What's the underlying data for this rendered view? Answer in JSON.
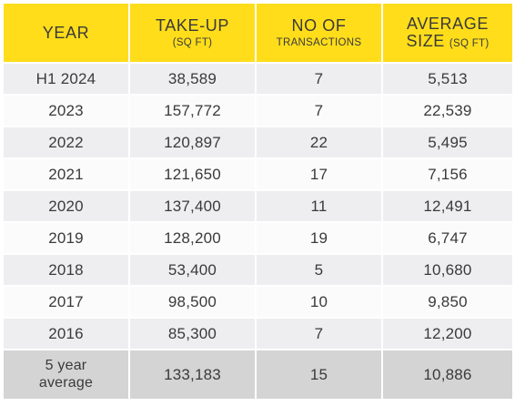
{
  "header": {
    "year": "YEAR",
    "takeup": "TAKE-UP",
    "takeup_unit": "(SQ FT)",
    "transactions_top": "NO OF",
    "transactions_bottom": "TRANSACTIONS",
    "avg_top": "AVERAGE",
    "avg_size": "SIZE",
    "avg_unit": "(SQ FT)"
  },
  "rows": [
    {
      "year": "H1 2024",
      "takeup": "38,589",
      "transactions": "7",
      "avg_size": "5,513"
    },
    {
      "year": "2023",
      "takeup": "157,772",
      "transactions": "7",
      "avg_size": "22,539"
    },
    {
      "year": "2022",
      "takeup": "120,897",
      "transactions": "22",
      "avg_size": "5,495"
    },
    {
      "year": "2021",
      "takeup": "121,650",
      "transactions": "17",
      "avg_size": "7,156"
    },
    {
      "year": "2020",
      "takeup": "137,400",
      "transactions": "11",
      "avg_size": "12,491"
    },
    {
      "year": "2019",
      "takeup": "128,200",
      "transactions": "19",
      "avg_size": "6,747"
    },
    {
      "year": "2018",
      "takeup": "53,400",
      "transactions": "5",
      "avg_size": "10,680"
    },
    {
      "year": "2017",
      "takeup": "98,500",
      "transactions": "10",
      "avg_size": "9,850"
    },
    {
      "year": "2016",
      "takeup": "85,300",
      "transactions": "7",
      "avg_size": "12,200"
    }
  ],
  "average": {
    "label_line1": "5 year",
    "label_line2": "average",
    "takeup": "133,183",
    "transactions": "15",
    "avg_size": "10,886"
  },
  "colors": {
    "header_yellow": "#ffdd1a",
    "row_alt": "#eeeef0",
    "row_plain": "#fbfbfb",
    "average_gray": "#d4d4d4",
    "text": "#3a3a3a"
  }
}
